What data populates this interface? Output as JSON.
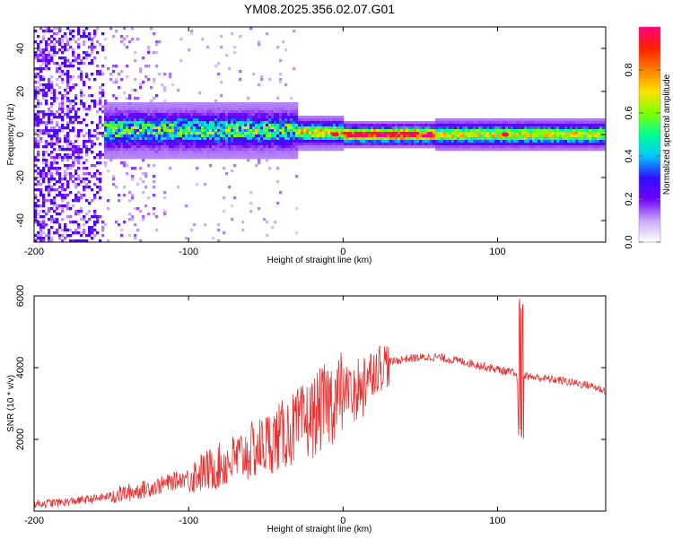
{
  "figure_title": "YM08.2025.356.02.07.G01",
  "chart_data": [
    {
      "type": "heatmap",
      "title": "YM08.2025.356.02.07.G01",
      "xlabel": "Height of straight line (km)",
      "ylabel": "Frequency (Hz)",
      "xlim": [
        -200,
        170
      ],
      "ylim": [
        -50,
        50
      ],
      "x_ticks": [
        -200,
        -100,
        0,
        100
      ],
      "y_ticks": [
        -40,
        -20,
        0,
        20,
        40
      ],
      "x_tick_labels": [
        "-200",
        "-100",
        "0",
        "100"
      ],
      "y_tick_labels": [
        "-40",
        "-20",
        "0",
        "20",
        "40"
      ],
      "colorbar": {
        "label": "Normalized spectral amplitude",
        "range": [
          0,
          1
        ],
        "ticks": [
          0.0,
          0.2,
          0.4,
          0.6,
          0.8
        ],
        "tick_labels": [
          "0.0",
          "0.2",
          "0.4",
          "0.6",
          "0.8"
        ],
        "colors": [
          "#ffffff",
          "#c8a8f8",
          "#7000f8",
          "#3010ff",
          "#00c8ff",
          "#00ff90",
          "#80ff00",
          "#ffe000",
          "#ff8000",
          "#ff2000",
          "#ff0080"
        ]
      },
      "signal_band": [
        {
          "x_range": [
            -200,
            -155
          ],
          "half_width_hz": 50,
          "amplitude": 0.18,
          "note": "broad noise"
        },
        {
          "x_range": [
            -155,
            -30
          ],
          "center_hz": 2,
          "half_width_hz": 8,
          "amplitude": 0.45
        },
        {
          "x_range": [
            -30,
            0
          ],
          "center_hz": 1,
          "half_width_hz": 5,
          "amplitude": 0.6
        },
        {
          "x_range": [
            0,
            60
          ],
          "center_hz": 0,
          "half_width_hz": 4,
          "amplitude": 0.9
        },
        {
          "x_range": [
            60,
            170
          ],
          "center_hz": 0,
          "half_width_hz": 5,
          "amplitude": 0.55
        }
      ]
    },
    {
      "type": "line",
      "xlabel": "Height of straight line (km)",
      "ylabel": "SNR (10 * v/v)",
      "xlim": [
        -200,
        170
      ],
      "ylim": [
        0,
        6000
      ],
      "x_ticks": [
        -200,
        -100,
        0,
        100
      ],
      "y_ticks": [
        2000,
        4000,
        6000
      ],
      "x_tick_labels": [
        "-200",
        "-100",
        "0",
        "100"
      ],
      "y_tick_labels": [
        "2000",
        "4000",
        "6000"
      ],
      "color": "#e83030",
      "series": [
        {
          "name": "SNR",
          "x": [
            -200,
            -180,
            -160,
            -140,
            -120,
            -100,
            -80,
            -60,
            -40,
            -30,
            -20,
            -10,
            0,
            10,
            20,
            30,
            40,
            60,
            80,
            100,
            110,
            113,
            115,
            118,
            120,
            140,
            160,
            170
          ],
          "y": [
            200,
            250,
            350,
            500,
            700,
            950,
            1250,
            1650,
            2100,
            2350,
            2600,
            3000,
            3300,
            3600,
            3950,
            4150,
            4250,
            4300,
            4150,
            3950,
            3850,
            3700,
            3750,
            3800,
            3750,
            3650,
            3500,
            3350
          ]
        }
      ],
      "annotations": [
        {
          "x": 115,
          "y_max": 6000,
          "y_min": 2000,
          "note": "sharp spike"
        }
      ]
    }
  ]
}
